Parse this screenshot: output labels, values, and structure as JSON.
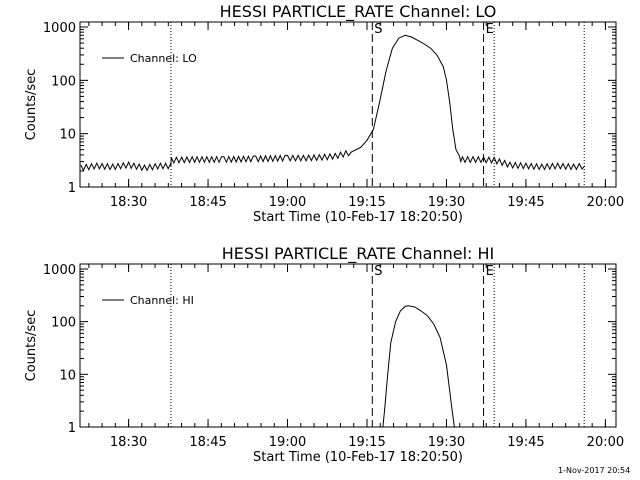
{
  "footer_timestamp": "1-Nov-2017 20:54",
  "chart_data": [
    {
      "type": "line",
      "title": "HESSI PARTICLE_RATE Channel: LO",
      "xlabel": "Start Time (10-Feb-17 18:20:50)",
      "ylabel": "Counts/sec",
      "yscale": "log",
      "ylim": [
        1,
        1000
      ],
      "xlim": [
        18.3472,
        20.0333
      ],
      "xticks": [
        {
          "label": "18:30",
          "value": 18.5
        },
        {
          "label": "18:45",
          "value": 18.75
        },
        {
          "label": "19:00",
          "value": 19.0
        },
        {
          "label": "19:15",
          "value": 19.25
        },
        {
          "label": "19:30",
          "value": 19.5
        },
        {
          "label": "19:45",
          "value": 19.75
        },
        {
          "label": "20:00",
          "value": 20.0
        }
      ],
      "yticks": [
        {
          "label": "1",
          "value": 1
        },
        {
          "label": "10",
          "value": 10
        },
        {
          "label": "100",
          "value": 100
        },
        {
          "label": "1000",
          "value": 1000
        }
      ],
      "legend": {
        "label": "Channel: LO",
        "position": "top-left"
      },
      "markers": [
        {
          "label": "S",
          "x": 19.2667
        },
        {
          "label": "E",
          "x": 19.6167
        }
      ],
      "dotted_lines": [
        18.6333,
        19.65,
        19.9333
      ],
      "series": [
        {
          "name": "Channel: LO",
          "x": [
            18.35,
            18.4,
            18.45,
            18.5,
            18.55,
            18.6,
            18.633,
            18.634,
            18.7,
            18.8,
            18.9,
            19.0,
            19.05,
            19.1,
            19.15,
            19.2,
            19.23,
            19.25,
            19.27,
            19.29,
            19.31,
            19.33,
            19.35,
            19.37,
            19.39,
            19.41,
            19.43,
            19.45,
            19.47,
            19.49,
            19.5,
            19.51,
            19.52,
            19.53,
            19.54,
            19.55,
            19.6,
            19.65,
            19.7,
            19.75,
            19.8,
            19.85,
            19.9,
            19.935
          ],
          "y": [
            2.3,
            2.5,
            2.4,
            2.6,
            2.3,
            2.5,
            2.5,
            3.2,
            3.3,
            3.3,
            3.4,
            3.5,
            3.5,
            3.6,
            3.8,
            4.5,
            5.5,
            7.5,
            12,
            40,
            150,
            400,
            620,
            700,
            650,
            560,
            480,
            400,
            300,
            180,
            100,
            40,
            12,
            5,
            3.5,
            3.3,
            3.3,
            3.2,
            2.6,
            2.5,
            2.4,
            2.5,
            2.4,
            2.5
          ]
        }
      ]
    },
    {
      "type": "line",
      "title": "HESSI PARTICLE_RATE Channel: HI",
      "xlabel": "Start Time (10-Feb-17 18:20:50)",
      "ylabel": "Counts/sec",
      "yscale": "log",
      "ylim": [
        1,
        1000
      ],
      "xlim": [
        18.3472,
        20.0333
      ],
      "xticks": [
        {
          "label": "18:30",
          "value": 18.5
        },
        {
          "label": "18:45",
          "value": 18.75
        },
        {
          "label": "19:00",
          "value": 19.0
        },
        {
          "label": "19:15",
          "value": 19.25
        },
        {
          "label": "19:30",
          "value": 19.5
        },
        {
          "label": "19:45",
          "value": 19.75
        },
        {
          "label": "20:00",
          "value": 20.0
        }
      ],
      "yticks": [
        {
          "label": "1",
          "value": 1
        },
        {
          "label": "10",
          "value": 10
        },
        {
          "label": "100",
          "value": 100
        },
        {
          "label": "1000",
          "value": 1000
        }
      ],
      "legend": {
        "label": "Channel: HI",
        "position": "top-left"
      },
      "markers": [
        {
          "label": "S",
          "x": 19.2667
        },
        {
          "label": "E",
          "x": 19.6167
        }
      ],
      "dotted_lines": [
        18.6333,
        19.65,
        19.9333
      ],
      "series": [
        {
          "name": "Channel: HI",
          "x": [
            19.3,
            19.305,
            19.315,
            19.325,
            19.34,
            19.355,
            19.37,
            19.38,
            19.4,
            19.42,
            19.44,
            19.46,
            19.48,
            19.5,
            19.51,
            19.518,
            19.525
          ],
          "y": [
            1,
            2,
            10,
            40,
            100,
            160,
            195,
            200,
            190,
            160,
            130,
            90,
            50,
            15,
            5,
            2,
            1
          ]
        }
      ]
    }
  ]
}
